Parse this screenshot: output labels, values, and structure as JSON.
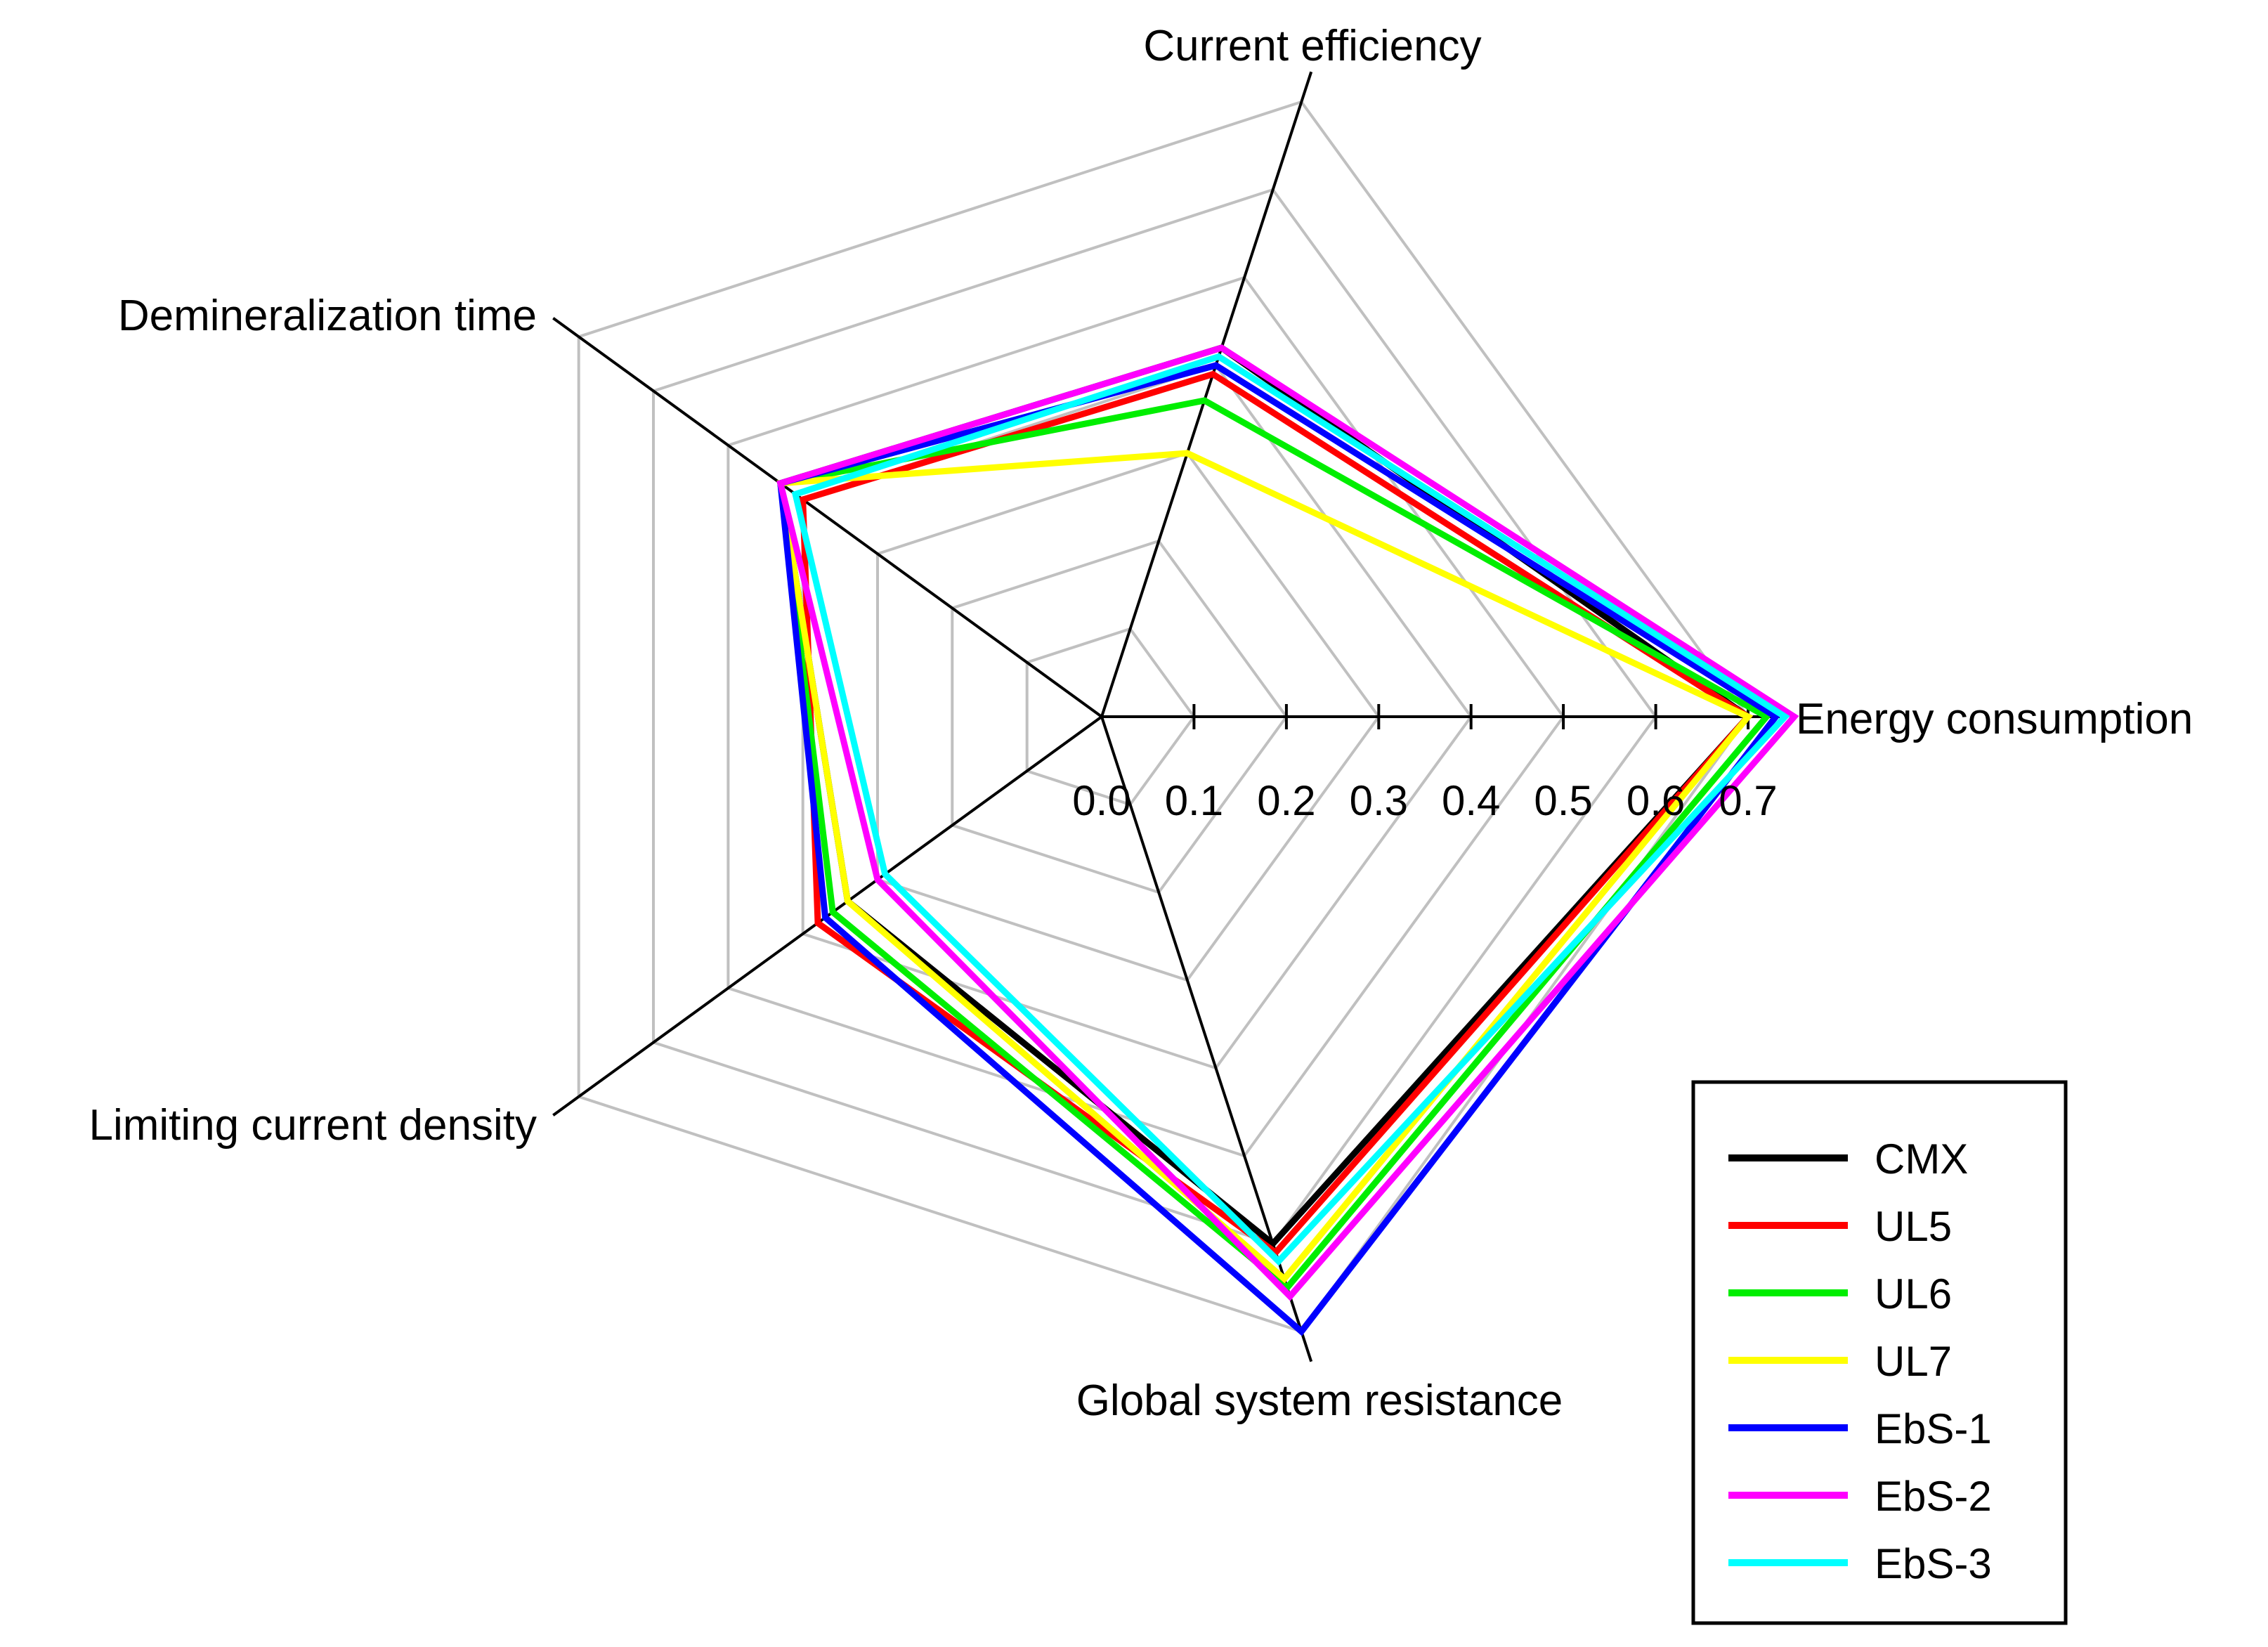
{
  "chart_data": {
    "type": "radar",
    "axes": [
      "Energy consumption",
      "Current efficiency",
      "Demineralization time",
      "Limiting current density",
      "Global system resistance"
    ],
    "range": [
      0.0,
      0.7
    ],
    "ticks": [
      "0.0",
      "0.1",
      "0.2",
      "0.3",
      "0.4",
      "0.5",
      "0.6",
      "0.7"
    ],
    "grid": true,
    "legend_position": "bottom-right",
    "series": [
      {
        "name": "CMX",
        "color": "#000000",
        "values": [
          0.7,
          0.42,
          0.43,
          0.34,
          0.6
        ]
      },
      {
        "name": "UL5",
        "color": "#ff0000",
        "values": [
          0.7,
          0.39,
          0.4,
          0.38,
          0.61
        ]
      },
      {
        "name": "UL6",
        "color": "#00ee00",
        "values": [
          0.72,
          0.36,
          0.43,
          0.36,
          0.65
        ]
      },
      {
        "name": "UL7",
        "color": "#ffff00",
        "values": [
          0.7,
          0.3,
          0.43,
          0.34,
          0.64
        ]
      },
      {
        "name": "EbS-1",
        "color": "#0000ff",
        "values": [
          0.73,
          0.4,
          0.43,
          0.37,
          0.7
        ]
      },
      {
        "name": "EbS-2",
        "color": "#ff00ff",
        "values": [
          0.75,
          0.42,
          0.43,
          0.3,
          0.66
        ]
      },
      {
        "name": "EbS-3",
        "color": "#00ffff",
        "values": [
          0.74,
          0.41,
          0.41,
          0.29,
          0.62
        ]
      }
    ]
  }
}
